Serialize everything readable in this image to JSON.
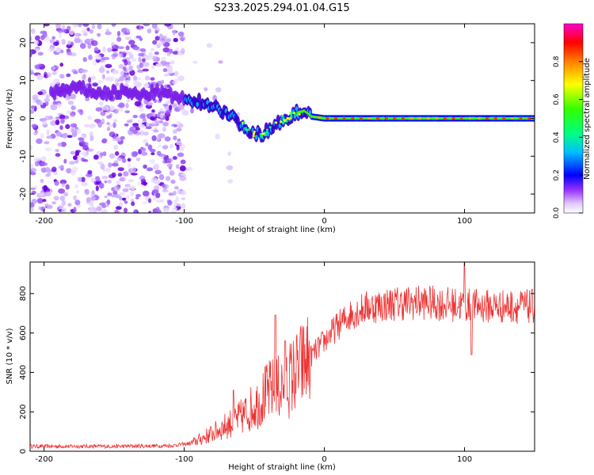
{
  "title": "S233.2025.294.01.04.G15",
  "chart_data": [
    {
      "type": "heatmap",
      "name": "spectrogram",
      "xlabel": "Height of straight line (km)",
      "ylabel": "Frequency (Hz)",
      "xlim": [
        -210,
        150
      ],
      "ylim": [
        -25,
        25
      ],
      "xticks": [
        -200,
        -100,
        0,
        100
      ],
      "yticks": [
        -20,
        -10,
        0,
        10,
        20
      ],
      "ridge": {
        "description_x": [
          -190,
          -175,
          -160,
          -145,
          -130,
          -120,
          -110,
          -100,
          -90,
          -80,
          -70,
          -60,
          -52,
          -45,
          -40,
          -35,
          -30,
          -25,
          -20,
          -15,
          -10,
          0,
          50,
          100,
          150
        ],
        "frequency": [
          7,
          8,
          6.5,
          7,
          6,
          7,
          6,
          5,
          4.5,
          3.5,
          1.5,
          -1.5,
          -3.5,
          -4.5,
          -3,
          -1.5,
          -0.5,
          0.5,
          1.5,
          2,
          0.5,
          0,
          0,
          0,
          0
        ]
      },
      "colorbar": {
        "label": "Normalized spectral amplitude",
        "range": [
          0,
          1
        ],
        "ticks": [
          "0.0",
          "0.2",
          "0.4",
          "0.6",
          "0.8"
        ],
        "tick_values": [
          0,
          0.2,
          0.4,
          0.6,
          0.8
        ],
        "colors": [
          "#ffffff",
          "#cc99ff",
          "#8000ff",
          "#0000ff",
          "#00ffff",
          "#00ff00",
          "#ffff00",
          "#ff8000",
          "#ff0000",
          "#ff00aa"
        ]
      }
    },
    {
      "type": "line",
      "name": "snr",
      "xlabel": "Height of straight line (km)",
      "ylabel": "SNR (10 * v/v)",
      "xlim": [
        -210,
        150
      ],
      "ylim": [
        0,
        960
      ],
      "xticks": [
        -200,
        -100,
        0,
        100
      ],
      "yticks": [
        0,
        200,
        400,
        600,
        800
      ],
      "color": "#ee3333",
      "trend": {
        "x": [
          -210,
          -150,
          -110,
          -95,
          -80,
          -70,
          -60,
          -50,
          -40,
          -30,
          -20,
          -10,
          0,
          10,
          20,
          30,
          50,
          70,
          100,
          120,
          150
        ],
        "y": [
          25,
          25,
          28,
          40,
          90,
          130,
          170,
          230,
          300,
          330,
          400,
          480,
          560,
          640,
          700,
          730,
          750,
          755,
          740,
          735,
          735
        ]
      },
      "spikes": [
        {
          "x": -65,
          "y": 310
        },
        {
          "x": -35,
          "y": 690
        },
        {
          "x": -28,
          "y": 560
        },
        {
          "x": 100,
          "y": 960
        },
        {
          "x": 105,
          "y": 490
        }
      ]
    }
  ]
}
